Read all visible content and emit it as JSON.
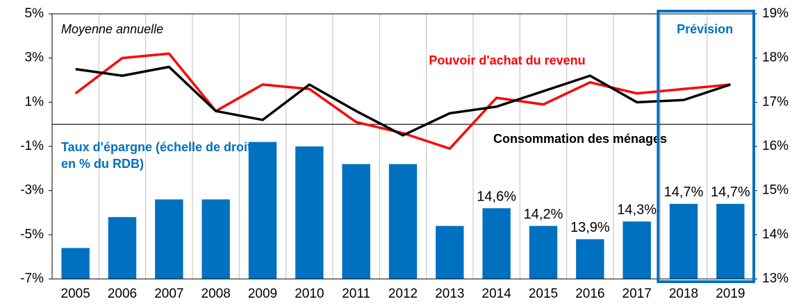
{
  "chart_data": {
    "type": "bar-line",
    "categories": [
      "2005",
      "2006",
      "2007",
      "2008",
      "2009",
      "2010",
      "2011",
      "2012",
      "2013",
      "2014",
      "2015",
      "2016",
      "2017",
      "2018",
      "2019"
    ],
    "ylim": [
      -7,
      5
    ],
    "yticks": [
      {
        "value": 5,
        "label": "5%"
      },
      {
        "value": 3,
        "label": "3%"
      },
      {
        "value": 1,
        "label": "1%"
      },
      {
        "value": -1,
        "label": "-1%"
      },
      {
        "value": -3,
        "label": "-3%"
      },
      {
        "value": -5,
        "label": "-5%"
      },
      {
        "value": -7,
        "label": "-7%"
      }
    ],
    "y2lim": [
      13,
      19
    ],
    "y2ticks": [
      {
        "value": 19,
        "label": "19%"
      },
      {
        "value": 18,
        "label": "18%"
      },
      {
        "value": 17,
        "label": "17%"
      },
      {
        "value": 16,
        "label": "16%"
      },
      {
        "value": 15,
        "label": "15%"
      },
      {
        "value": 14,
        "label": "14%"
      },
      {
        "value": 13,
        "label": "13%"
      }
    ],
    "grid": true,
    "series": [
      {
        "name": "Taux d'épargne (échelle de droite, en % du RDB)",
        "type": "bar",
        "axis": "y2",
        "color": "#0070c0",
        "values": [
          13.7,
          14.4,
          14.8,
          14.8,
          16.1,
          16.0,
          15.6,
          15.6,
          14.2,
          14.6,
          14.2,
          13.9,
          14.3,
          14.7,
          14.7
        ],
        "value_labels": [
          null,
          null,
          null,
          null,
          null,
          null,
          null,
          null,
          null,
          "14,6%",
          "14,2%",
          "13,9%",
          "14,3%",
          "14,7%",
          "14,7%"
        ]
      },
      {
        "name": "Pouvoir d'achat du revenu",
        "type": "line",
        "axis": "y",
        "color": "#ff0000",
        "values": [
          1.4,
          3.0,
          3.2,
          0.6,
          1.8,
          1.6,
          0.1,
          -0.4,
          -1.1,
          1.2,
          0.9,
          1.9,
          1.4,
          1.6,
          1.8
        ]
      },
      {
        "name": "Consommation des ménages",
        "type": "line",
        "axis": "y",
        "color": "#000000",
        "values": [
          2.5,
          2.2,
          2.6,
          0.6,
          0.2,
          1.8,
          0.6,
          -0.5,
          0.5,
          0.8,
          1.5,
          2.2,
          1.0,
          1.1,
          1.8
        ]
      }
    ],
    "annotations": [
      "Moyenne annuelle",
      "Prévision"
    ]
  }
}
